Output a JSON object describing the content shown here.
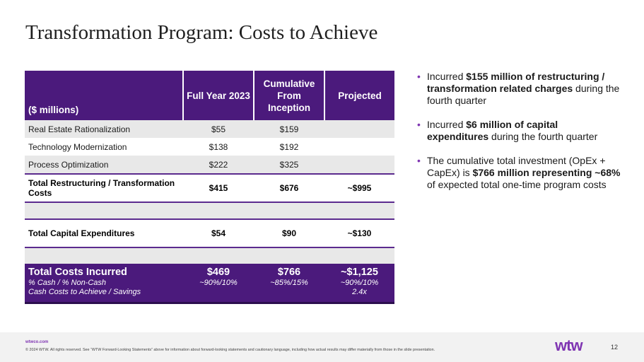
{
  "title": "Transformation Program: Costs to Achieve",
  "table": {
    "headers": [
      "($ millions)",
      "Full Year 2023",
      "Cumulative From Inception",
      "Projected"
    ],
    "rows": [
      {
        "label": "Real Estate Rationalization",
        "fy": "$55",
        "cum": "$159",
        "proj": ""
      },
      {
        "label": "Technology Modernization",
        "fy": "$138",
        "cum": "$192",
        "proj": ""
      },
      {
        "label": "Process Optimization",
        "fy": "$222",
        "cum": "$325",
        "proj": ""
      }
    ],
    "restructuring": {
      "label": "Total Restructuring / Transformation Costs",
      "fy": "$415",
      "cum": "$676",
      "proj": "~$995"
    },
    "capex": {
      "label": "Total Capital Expenditures",
      "fy": "$54",
      "cum": "$90",
      "proj": "~$130"
    },
    "total": {
      "label": "Total Costs Incurred",
      "sub1": "% Cash / % Non-Cash",
      "sub2": "Cash Costs to Achieve / Savings",
      "fy": "$469",
      "fy_sub": "~90%/10%",
      "cum": "$766",
      "cum_sub": "~85%/15%",
      "proj": "~$1,125",
      "proj_sub1": "~90%/10%",
      "proj_sub2": "2.4x"
    }
  },
  "bullets": [
    {
      "pre": "Incurred ",
      "bold": "$155 million of restructuring / transformation related charges",
      "mid": " during the fourth quarter",
      "bold2": "",
      "post": ""
    },
    {
      "pre": "Incurred ",
      "bold": "$6 million of capital expenditures",
      "mid": " during the fourth quarter",
      "bold2": "",
      "post": ""
    },
    {
      "pre": "The cumulative total investment (OpEx + CapEx) is ",
      "bold": "$766 million representing ~68%",
      "mid": " of expected total one-time program costs",
      "bold2": "",
      "post": ""
    }
  ],
  "footer": {
    "url": "wtwco.com",
    "legal": "© 2024 WTW. All rights reserved. See “WTW Forward-Looking Statements” above for information about forward-looking statements and cautionary language, including how actual results may differ materially from those in the slide presentation.",
    "logo": "wtw",
    "page": "12"
  },
  "colors": {
    "brand_purple": "#4b1a7c",
    "accent_purple": "#7f35b2",
    "row_shade": "#e8e8e8"
  }
}
